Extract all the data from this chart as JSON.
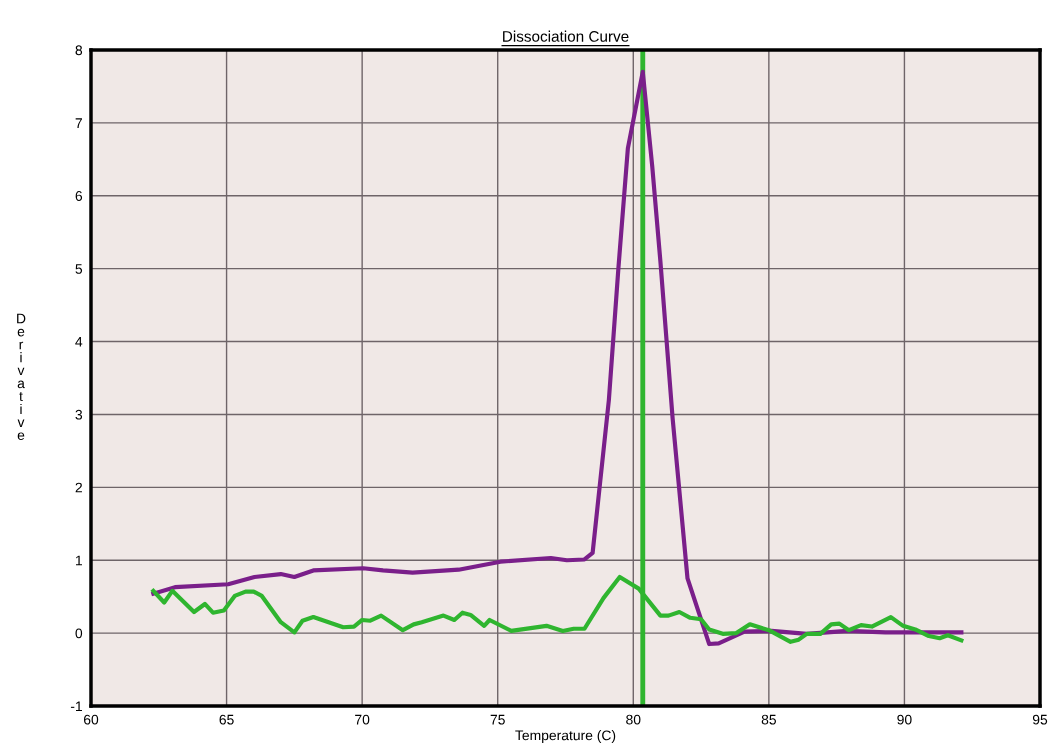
{
  "chart_data": {
    "type": "line",
    "title": "Dissociation Curve",
    "xlabel": "Temperature (C)",
    "ylabel": "Derivative",
    "xlim": [
      60,
      95
    ],
    "xticks": [
      60,
      65,
      70,
      75,
      80,
      85,
      90,
      95
    ],
    "ylim": [
      -1,
      8
    ],
    "yticks": [
      -1,
      0,
      1,
      2,
      3,
      4,
      5,
      6,
      7,
      8
    ],
    "grid": true,
    "legend": false,
    "marker": "none",
    "line_style": "solid",
    "series": [
      {
        "color": "#7a1f8a",
        "x": [
          62.3,
          63.1,
          65.06,
          66.03,
          67.0,
          67.5,
          68.2,
          70.04,
          70.77,
          71.86,
          73.56,
          75.1,
          76.96,
          77.55,
          78.2,
          78.5,
          79.1,
          79.45,
          79.8,
          80.35,
          80.7,
          81.0,
          81.45,
          82.0,
          82.8,
          83.15,
          84.1,
          85.1,
          86.4,
          87.9,
          89.3,
          92.1
        ],
        "values": [
          0.54,
          0.63,
          0.67,
          0.77,
          0.81,
          0.77,
          0.86,
          0.89,
          0.86,
          0.83,
          0.87,
          0.98,
          1.03,
          1.0,
          1.01,
          1.1,
          3.2,
          5.0,
          6.65,
          7.7,
          6.4,
          5.1,
          2.95,
          0.75,
          -0.15,
          -0.14,
          0.02,
          0.03,
          -0.01,
          0.03,
          0.01,
          0.01
        ]
      },
      {
        "color": "#2fb52f",
        "x": [
          62.3,
          62.7,
          63.0,
          63.8,
          64.2,
          64.5,
          64.9,
          65.3,
          65.7,
          66.0,
          66.3,
          67.0,
          67.5,
          67.8,
          68.2,
          69.3,
          69.7,
          70.0,
          70.3,
          70.7,
          71.5,
          71.9,
          72.2,
          73.0,
          73.4,
          73.7,
          74.0,
          74.5,
          74.7,
          75.5,
          76.8,
          77.4,
          77.8,
          78.2,
          78.9,
          79.5,
          80.2,
          81.0,
          81.3,
          81.7,
          82.1,
          82.5,
          82.8,
          83.3,
          83.8,
          84.3,
          85.0,
          85.8,
          86.1,
          86.4,
          86.9,
          87.3,
          87.6,
          87.95,
          88.4,
          88.8,
          89.5,
          89.95,
          90.4,
          90.9,
          91.3,
          91.6,
          92.1
        ],
        "values": [
          0.58,
          0.42,
          0.58,
          0.29,
          0.4,
          0.28,
          0.31,
          0.51,
          0.57,
          0.57,
          0.51,
          0.15,
          0.01,
          0.17,
          0.22,
          0.08,
          0.09,
          0.18,
          0.17,
          0.24,
          0.04,
          0.12,
          0.15,
          0.24,
          0.18,
          0.28,
          0.25,
          0.1,
          0.18,
          0.03,
          0.1,
          0.03,
          0.06,
          0.06,
          0.48,
          0.77,
          0.61,
          0.24,
          0.24,
          0.29,
          0.21,
          0.19,
          0.05,
          -0.01,
          0.0,
          0.12,
          0.04,
          -0.12,
          -0.09,
          -0.01,
          -0.01,
          0.12,
          0.13,
          0.04,
          0.11,
          0.09,
          0.22,
          0.1,
          0.05,
          -0.04,
          -0.07,
          -0.03,
          -0.1
        ]
      }
    ],
    "ref_lines": [
      {
        "axis": "x",
        "value": 80.35,
        "color": "#2fb52f",
        "line_style": "solid"
      }
    ]
  }
}
